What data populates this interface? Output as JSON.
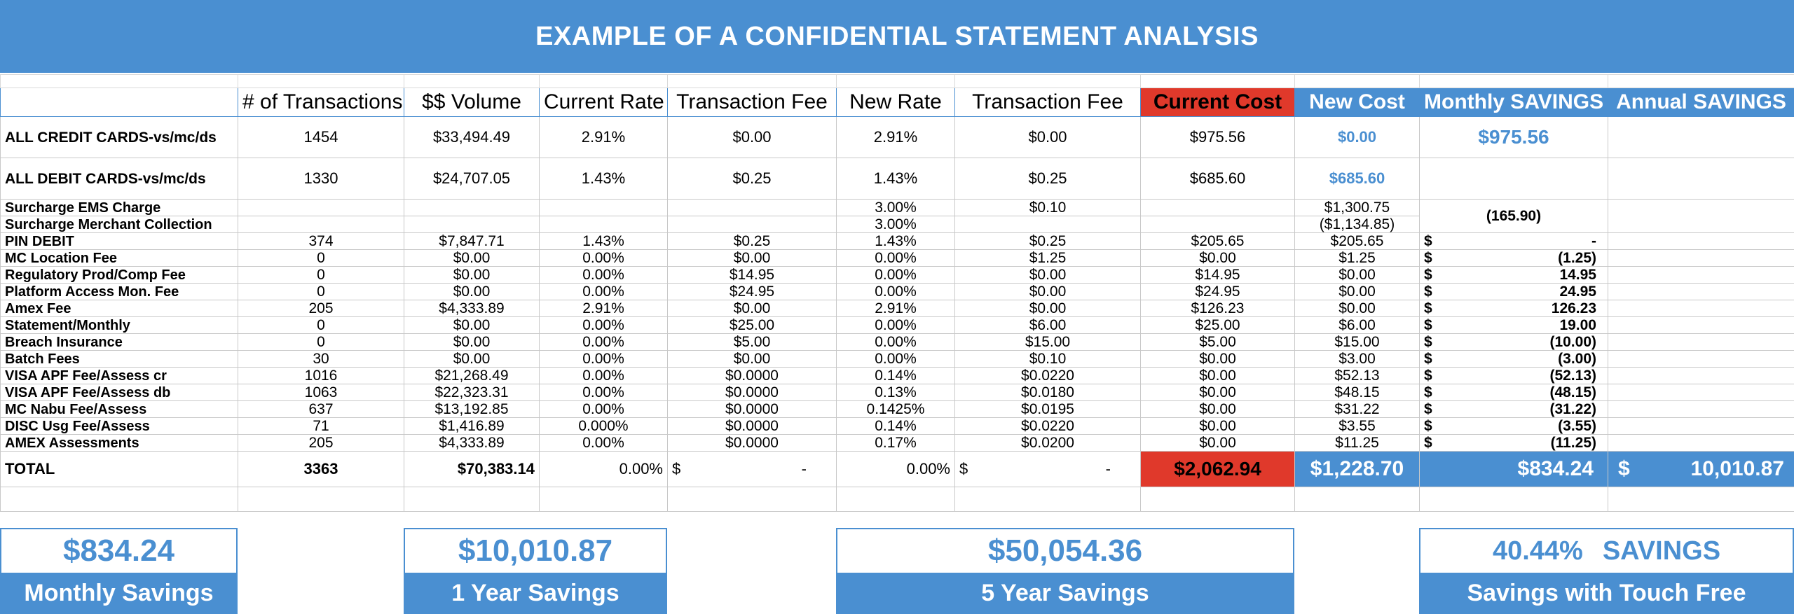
{
  "title": "EXAMPLE OF A CONFIDENTIAL STATEMENT ANALYSIS",
  "headers": [
    "",
    "# of Transactions",
    "$$ Volume",
    "Current Rate",
    "Transaction Fee",
    "New Rate",
    "Transaction Fee",
    "Current Cost",
    "New Cost",
    "Monthly SAVINGS",
    "Annual SAVINGS"
  ],
  "rows": {
    "credit": {
      "label": "ALL CREDIT CARDS-vs/mc/ds",
      "trans": "1454",
      "volume": "$33,494.49",
      "cur_rate": "2.91%",
      "cur_fee": "$0.00",
      "new_rate": "2.91%",
      "new_fee": "$0.00",
      "cur_cost": "$975.56",
      "new_cost": "$0.00",
      "monthly": "$975.56"
    },
    "debit": {
      "label": "ALL DEBIT CARDS-vs/mc/ds",
      "trans": "1330",
      "volume": "$24,707.05",
      "cur_rate": "1.43%",
      "cur_fee": "$0.25",
      "new_rate": "1.43%",
      "new_fee": "$0.25",
      "cur_cost": "$685.60",
      "new_cost": "$685.60"
    },
    "surcharge_ems": {
      "label": "Surcharge EMS Charge",
      "new_rate": "3.00%",
      "new_fee": "$0.10",
      "new_cost": "$1,300.75"
    },
    "surcharge_merchant": {
      "label": "Surcharge Merchant Collection",
      "new_rate": "3.00%",
      "new_cost": "($1,134.85)"
    },
    "surcharge_monthly": "(165.90)"
  },
  "detail_rows": [
    {
      "label": "PIN DEBIT",
      "trans": "374",
      "volume": "$7,847.71",
      "cur_rate": "1.43%",
      "cur_fee": "$0.25",
      "new_rate": "1.43%",
      "new_fee": "$0.25",
      "cur_cost": "$205.65",
      "new_cost": "$205.65",
      "sym": "$",
      "monthly": "-"
    },
    {
      "label": "MC Location Fee",
      "trans": "0",
      "volume": "$0.00",
      "cur_rate": "0.00%",
      "cur_fee": "$0.00",
      "new_rate": "0.00%",
      "new_fee": "$1.25",
      "cur_cost": "$0.00",
      "new_cost": "$1.25",
      "sym": "$",
      "monthly": "(1.25)"
    },
    {
      "label": "Regulatory Prod/Comp Fee",
      "trans": "0",
      "volume": "$0.00",
      "cur_rate": "0.00%",
      "cur_fee": "$14.95",
      "new_rate": "0.00%",
      "new_fee": "$0.00",
      "cur_cost": "$14.95",
      "new_cost": "$0.00",
      "sym": "$",
      "monthly": "14.95"
    },
    {
      "label": "Platform Access Mon. Fee",
      "trans": "0",
      "volume": "$0.00",
      "cur_rate": "0.00%",
      "cur_fee": "$24.95",
      "new_rate": "0.00%",
      "new_fee": "$0.00",
      "cur_cost": "$24.95",
      "new_cost": "$0.00",
      "sym": "$",
      "monthly": "24.95"
    },
    {
      "label": "Amex Fee",
      "trans": "205",
      "volume": "$4,333.89",
      "cur_rate": "2.91%",
      "cur_fee": "$0.00",
      "new_rate": "2.91%",
      "new_fee": "$0.00",
      "cur_cost": "$126.23",
      "new_cost": "$0.00",
      "sym": "$",
      "monthly": "126.23"
    },
    {
      "label": "Statement/Monthly",
      "trans": "0",
      "volume": "$0.00",
      "cur_rate": "0.00%",
      "cur_fee": "$25.00",
      "new_rate": "0.00%",
      "new_fee": "$6.00",
      "cur_cost": "$25.00",
      "new_cost": "$6.00",
      "sym": "$",
      "monthly": "19.00"
    },
    {
      "label": "Breach Insurance",
      "trans": "0",
      "volume": "$0.00",
      "cur_rate": "0.00%",
      "cur_fee": "$5.00",
      "new_rate": "0.00%",
      "new_fee": "$15.00",
      "cur_cost": "$5.00",
      "new_cost": "$15.00",
      "sym": "$",
      "monthly": "(10.00)"
    },
    {
      "label": "Batch Fees",
      "trans": "30",
      "volume": "$0.00",
      "cur_rate": "0.00%",
      "cur_fee": "$0.00",
      "new_rate": "0.00%",
      "new_fee": "$0.10",
      "cur_cost": "$0.00",
      "new_cost": "$3.00",
      "sym": "$",
      "monthly": "(3.00)"
    },
    {
      "label": "VISA  APF Fee/Assess cr",
      "trans": "1016",
      "volume": "$21,268.49",
      "cur_rate": "0.00%",
      "cur_fee": "$0.0000",
      "new_rate": "0.14%",
      "new_fee": "$0.0220",
      "cur_cost": "$0.00",
      "new_cost": "$52.13",
      "sym": "$",
      "monthly": "(52.13)"
    },
    {
      "label": "VISA  APF Fee/Assess db",
      "trans": "1063",
      "volume": "$22,323.31",
      "cur_rate": "0.00%",
      "cur_fee": "$0.0000",
      "new_rate": "0.13%",
      "new_fee": "$0.0180",
      "cur_cost": "$0.00",
      "new_cost": "$48.15",
      "sym": "$",
      "monthly": "(48.15)"
    },
    {
      "label": "MC  Nabu Fee/Assess",
      "trans": "637",
      "volume": "$13,192.85",
      "cur_rate": "0.00%",
      "cur_fee": "$0.0000",
      "new_rate": "0.1425%",
      "new_fee": "$0.0195",
      "cur_cost": "$0.00",
      "new_cost": "$31.22",
      "sym": "$",
      "monthly": "(31.22)"
    },
    {
      "label": "DISC Usg Fee/Assess",
      "trans": "71",
      "volume": "$1,416.89",
      "cur_rate": "0.000%",
      "cur_fee": "$0.0000",
      "new_rate": "0.14%",
      "new_fee": "$0.0220",
      "cur_cost": "$0.00",
      "new_cost": "$3.55",
      "sym": "$",
      "monthly": "(3.55)"
    },
    {
      "label": "AMEX Assessments",
      "trans": "205",
      "volume": "$4,333.89",
      "cur_rate": "0.00%",
      "cur_fee": "$0.0000",
      "new_rate": "0.17%",
      "new_fee": "$0.0200",
      "cur_cost": "$0.00",
      "new_cost": "$11.25",
      "sym": "$",
      "monthly": "(11.25)"
    }
  ],
  "total": {
    "label": "TOTAL",
    "trans": "3363",
    "volume": "$70,383.14",
    "cur_rate": "0.00%",
    "cur_fee_sym": "$",
    "cur_fee_val": "-",
    "new_rate": "0.00%",
    "new_fee_sym": "$",
    "new_fee_val": "-",
    "cur_cost": "$2,062.94",
    "new_cost": "$1,228.70",
    "monthly": "$834.24",
    "annual_sym": "$",
    "annual": "10,010.87"
  },
  "summary": {
    "monthly_value": "$834.24",
    "monthly_label": "Monthly Savings",
    "year_value": "$10,010.87",
    "year_label": "1 Year Savings",
    "five_year_value": "$50,054.36",
    "five_year_label": "5 Year Savings",
    "percent_value": "40.44%",
    "percent_word": "SAVINGS",
    "percent_label": "Savings with Touch Free"
  },
  "colors": {
    "accent_blue": "#4a8fd1",
    "highlight_red": "#e0392b"
  }
}
